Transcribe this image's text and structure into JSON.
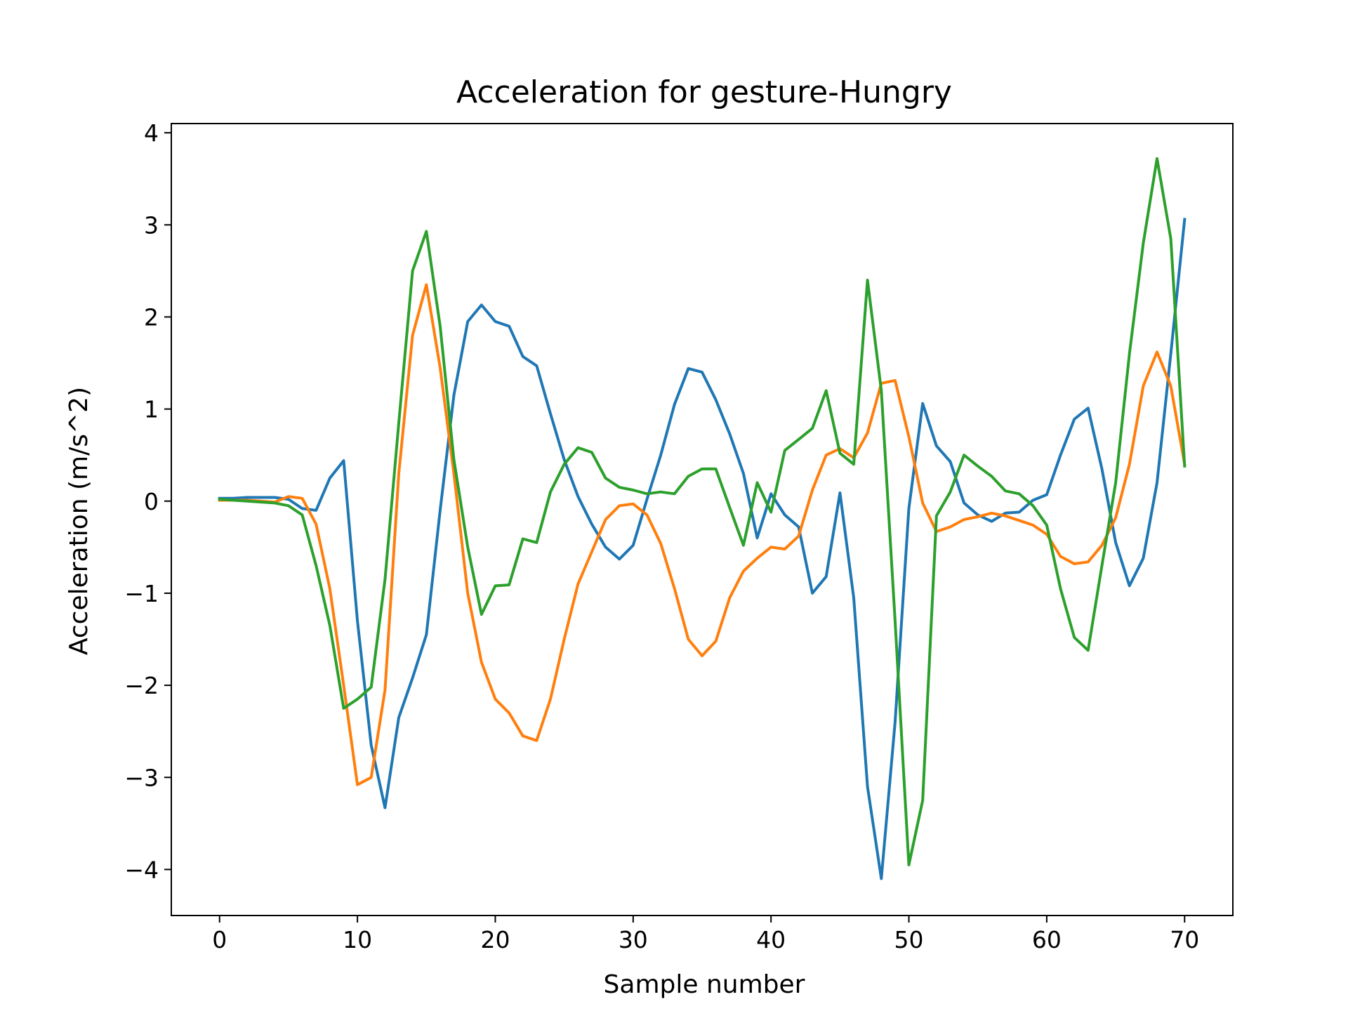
{
  "chart_data": {
    "type": "line",
    "title": "Acceleration for gesture-Hungry",
    "xlabel": "Sample number",
    "ylabel": "Acceleration (m/s^2)",
    "xlim": [
      -3.5,
      73.5
    ],
    "ylim": [
      -4.5,
      4.1
    ],
    "xticks": [
      0,
      10,
      20,
      30,
      40,
      50,
      60,
      70
    ],
    "xtick_labels": [
      "0",
      "10",
      "20",
      "30",
      "40",
      "50",
      "60",
      "70"
    ],
    "yticks": [
      -4,
      -3,
      -2,
      -1,
      0,
      1,
      2,
      3,
      4
    ],
    "ytick_labels": [
      "−4",
      "−3",
      "−2",
      "−1",
      "0",
      "1",
      "2",
      "3",
      "4"
    ],
    "grid": false,
    "legend": "none",
    "x": [
      0,
      1,
      2,
      3,
      4,
      5,
      6,
      7,
      8,
      9,
      10,
      11,
      12,
      13,
      14,
      15,
      16,
      17,
      18,
      19,
      20,
      21,
      22,
      23,
      24,
      25,
      26,
      27,
      28,
      29,
      30,
      31,
      32,
      33,
      34,
      35,
      36,
      37,
      38,
      39,
      40,
      41,
      42,
      43,
      44,
      45,
      46,
      47,
      48,
      49,
      50,
      51,
      52,
      53,
      54,
      55,
      56,
      57,
      58,
      59,
      60,
      61,
      62,
      63,
      64,
      65,
      66,
      67,
      68,
      69,
      70
    ],
    "series": [
      {
        "color": "#1f77b4",
        "values": [
          0.03,
          0.03,
          0.04,
          0.04,
          0.04,
          0.02,
          -0.08,
          -0.1,
          0.25,
          0.44,
          -1.3,
          -2.65,
          -3.33,
          -2.35,
          -1.92,
          -1.45,
          -0.1,
          1.15,
          1.95,
          2.13,
          1.95,
          1.9,
          1.57,
          1.47,
          0.95,
          0.45,
          0.05,
          -0.25,
          -0.5,
          -0.63,
          -0.48,
          0.02,
          0.5,
          1.05,
          1.44,
          1.4,
          1.1,
          0.73,
          0.3,
          -0.4,
          0.08,
          -0.15,
          -0.28,
          -1.0,
          -0.82,
          0.09,
          -1.05,
          -3.1,
          -4.1,
          -2.4,
          -0.08,
          1.06,
          0.6,
          0.43,
          -0.02,
          -0.15,
          -0.22,
          -0.13,
          -0.12,
          0.01,
          0.07,
          0.5,
          0.89,
          1.01,
          0.35,
          -0.45,
          -0.92,
          -0.62,
          0.2,
          1.6,
          3.06
        ]
      },
      {
        "color": "#ff7f0e",
        "values": [
          0.01,
          0.01,
          0.01,
          0.0,
          -0.01,
          0.05,
          0.03,
          -0.25,
          -0.95,
          -2.0,
          -3.08,
          -3.0,
          -2.05,
          0.3,
          1.8,
          2.35,
          1.45,
          0.3,
          -1.0,
          -1.75,
          -2.15,
          -2.3,
          -2.55,
          -2.6,
          -2.15,
          -1.5,
          -0.9,
          -0.55,
          -0.2,
          -0.05,
          -0.03,
          -0.15,
          -0.46,
          -0.95,
          -1.5,
          -1.68,
          -1.52,
          -1.05,
          -0.76,
          -0.62,
          -0.5,
          -0.52,
          -0.38,
          0.12,
          0.5,
          0.57,
          0.47,
          0.74,
          1.28,
          1.31,
          0.7,
          -0.02,
          -0.33,
          -0.28,
          -0.2,
          -0.17,
          -0.13,
          -0.16,
          -0.21,
          -0.26,
          -0.36,
          -0.6,
          -0.68,
          -0.66,
          -0.48,
          -0.18,
          0.4,
          1.25,
          1.62,
          1.25,
          0.4
        ]
      },
      {
        "color": "#2ca02c",
        "values": [
          0.02,
          0.01,
          0.0,
          -0.01,
          -0.02,
          -0.05,
          -0.15,
          -0.7,
          -1.35,
          -2.25,
          -2.15,
          -2.02,
          -0.85,
          0.85,
          2.5,
          2.93,
          1.9,
          0.45,
          -0.5,
          -1.23,
          -0.92,
          -0.91,
          -0.41,
          -0.45,
          0.1,
          0.4,
          0.58,
          0.53,
          0.25,
          0.15,
          0.12,
          0.08,
          0.1,
          0.08,
          0.27,
          0.35,
          0.35,
          -0.07,
          -0.48,
          0.2,
          -0.12,
          0.55,
          0.67,
          0.79,
          1.2,
          0.52,
          0.4,
          2.4,
          1.2,
          -1.3,
          -3.95,
          -3.25,
          -0.16,
          0.1,
          0.5,
          0.38,
          0.27,
          0.11,
          0.08,
          -0.05,
          -0.26,
          -0.95,
          -1.48,
          -1.62,
          -0.7,
          0.2,
          1.6,
          2.8,
          3.72,
          2.85,
          0.38
        ]
      }
    ]
  }
}
